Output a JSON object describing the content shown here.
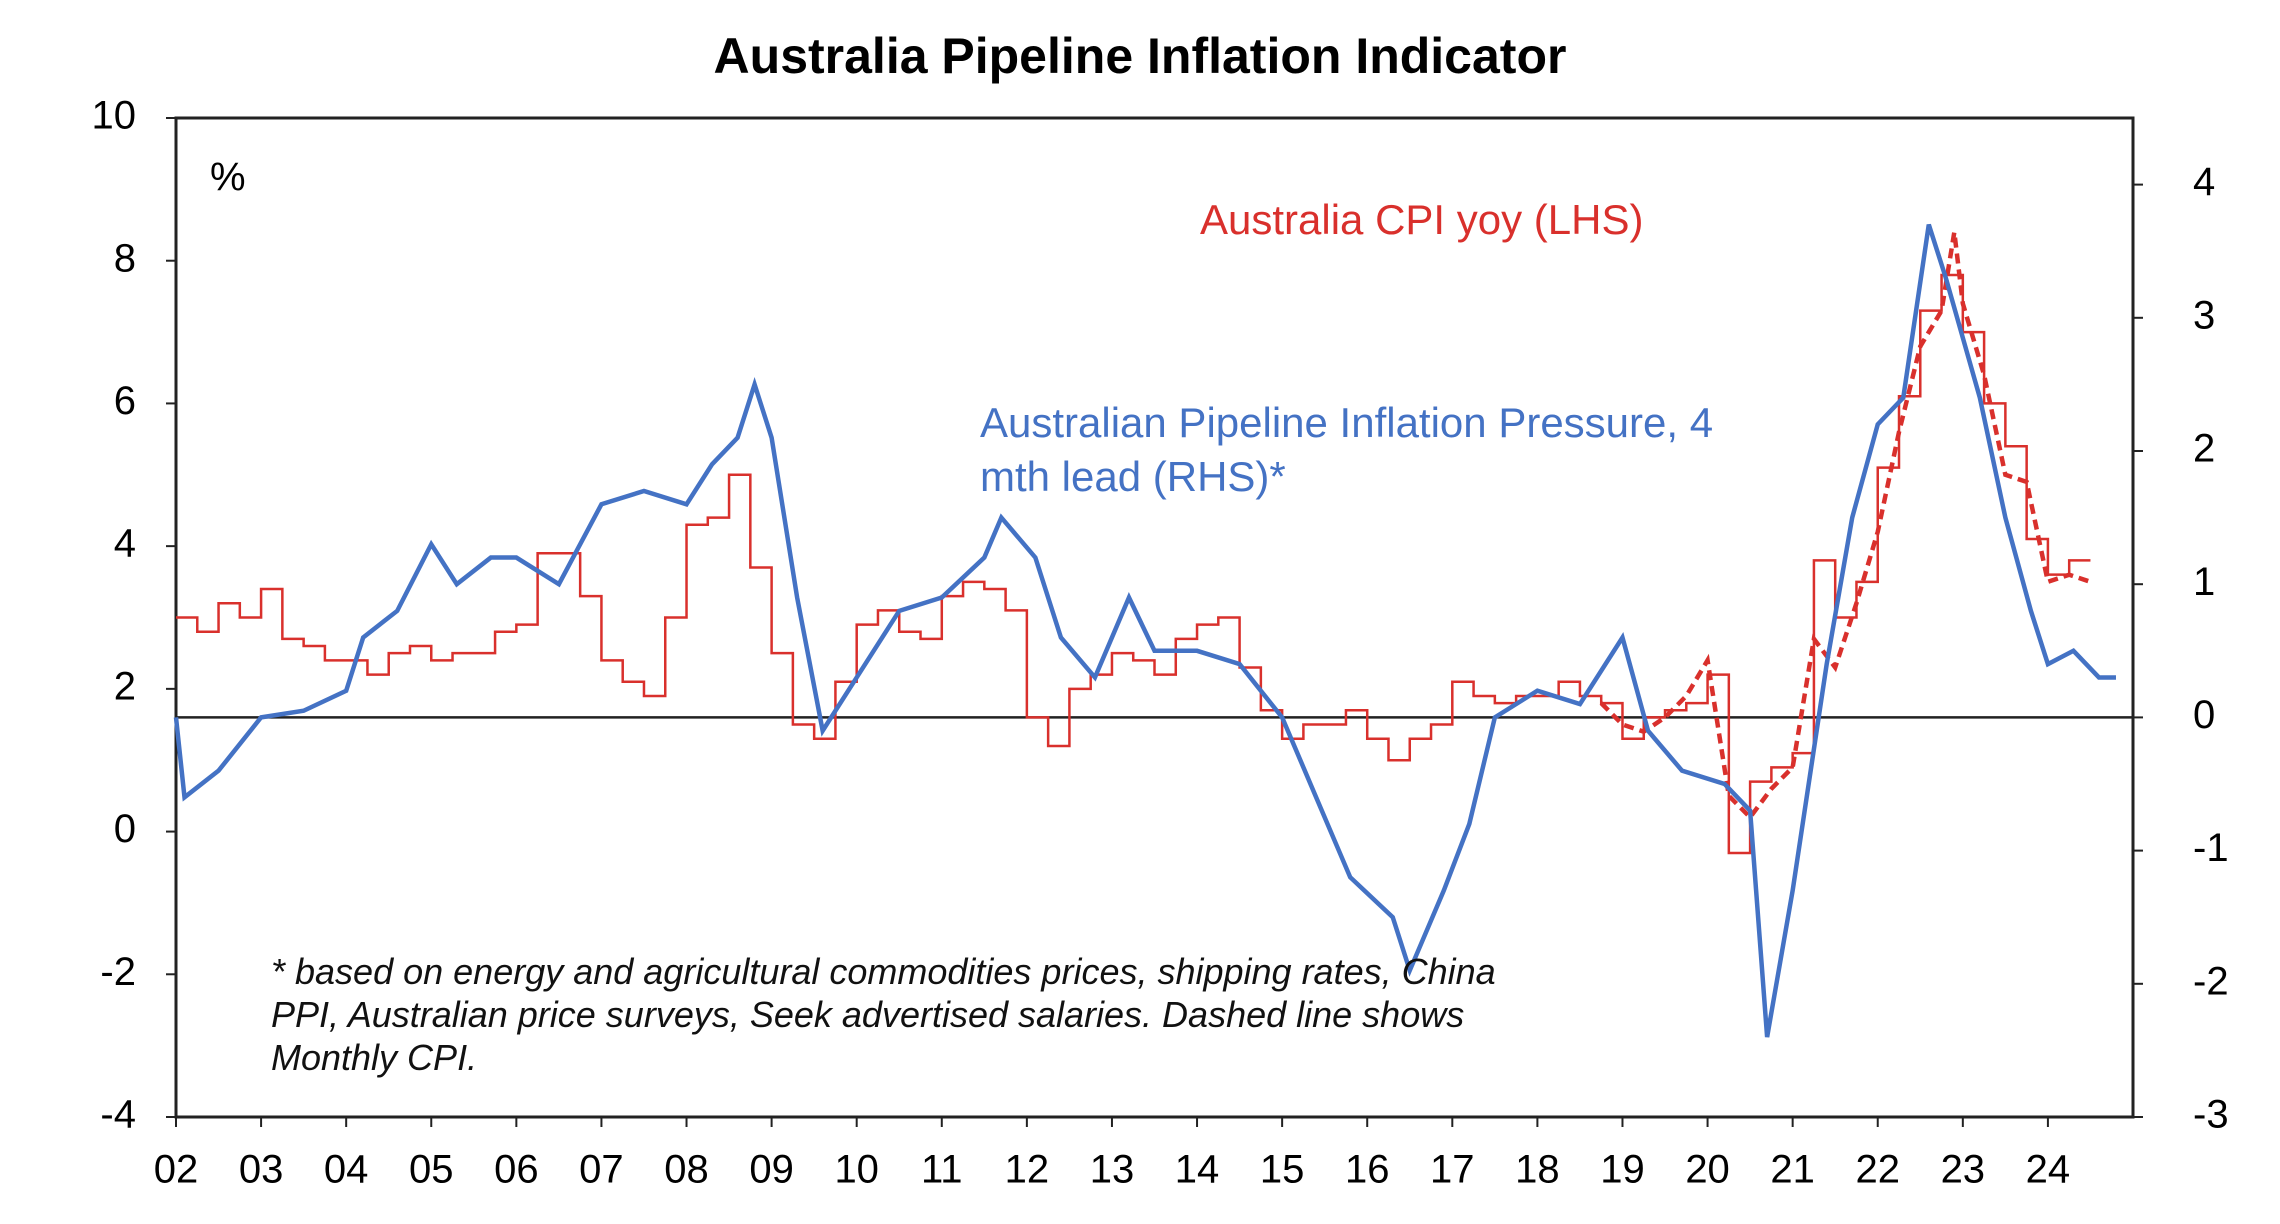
{
  "chart_data": {
    "type": "line",
    "title": "Australia Pipeline Inflation Indicator",
    "y_unit_label": "%",
    "xlim": [
      2002,
      2025
    ],
    "xticks": [
      {
        "value": 2002,
        "label": "02"
      },
      {
        "value": 2003,
        "label": "03"
      },
      {
        "value": 2004,
        "label": "04"
      },
      {
        "value": 2005,
        "label": "05"
      },
      {
        "value": 2006,
        "label": "06"
      },
      {
        "value": 2007,
        "label": "07"
      },
      {
        "value": 2008,
        "label": "08"
      },
      {
        "value": 2009,
        "label": "09"
      },
      {
        "value": 2010,
        "label": "10"
      },
      {
        "value": 2011,
        "label": "11"
      },
      {
        "value": 2012,
        "label": "12"
      },
      {
        "value": 2013,
        "label": "13"
      },
      {
        "value": 2014,
        "label": "14"
      },
      {
        "value": 2015,
        "label": "15"
      },
      {
        "value": 2016,
        "label": "16"
      },
      {
        "value": 2017,
        "label": "17"
      },
      {
        "value": 2018,
        "label": "18"
      },
      {
        "value": 2019,
        "label": "19"
      },
      {
        "value": 2020,
        "label": "20"
      },
      {
        "value": 2021,
        "label": "21"
      },
      {
        "value": 2022,
        "label": "22"
      },
      {
        "value": 2023,
        "label": "23"
      },
      {
        "value": 2024,
        "label": "24"
      }
    ],
    "ylim": [
      -4,
      10
    ],
    "yticks": [
      -4,
      -2,
      0,
      2,
      4,
      6,
      8,
      10
    ],
    "y2lim": [
      -3,
      4.5
    ],
    "y2ticks": [
      -3,
      -2,
      -1,
      0,
      1,
      2,
      3,
      4
    ],
    "hline": {
      "value": 0,
      "axis": "y2"
    },
    "footnote": "* based on energy and agricultural commodities prices, shipping rates, China PPI, Australian price surveys, Seek advertised salaries. Dashed line shows Monthly CPI.",
    "series": [
      {
        "name": "Australia CPI yoy (LHS)",
        "color": "#d9302c",
        "step": true,
        "axis": "y",
        "x": [
          2002,
          2002.25,
          2002.5,
          2002.75,
          2003,
          2003.25,
          2003.5,
          2003.75,
          2004,
          2004.25,
          2004.5,
          2004.75,
          2005,
          2005.25,
          2005.5,
          2005.75,
          2006,
          2006.25,
          2006.5,
          2006.75,
          2007,
          2007.25,
          2007.5,
          2007.75,
          2008,
          2008.25,
          2008.5,
          2008.75,
          2009,
          2009.25,
          2009.5,
          2009.75,
          2010,
          2010.25,
          2010.5,
          2010.75,
          2011,
          2011.25,
          2011.5,
          2011.75,
          2012,
          2012.25,
          2012.5,
          2012.75,
          2013,
          2013.25,
          2013.5,
          2013.75,
          2014,
          2014.25,
          2014.5,
          2014.75,
          2015,
          2015.25,
          2015.5,
          2015.75,
          2016,
          2016.25,
          2016.5,
          2016.75,
          2017,
          2017.25,
          2017.5,
          2017.75,
          2018,
          2018.25,
          2018.5,
          2018.75,
          2019,
          2019.25,
          2019.5,
          2019.75,
          2020,
          2020.25,
          2020.5,
          2020.75,
          2021,
          2021.25,
          2021.5,
          2021.75,
          2022,
          2022.25,
          2022.5,
          2022.75,
          2023,
          2023.25,
          2023.5,
          2023.75,
          2024,
          2024.25,
          2024.5
        ],
        "values": [
          3.0,
          2.8,
          3.2,
          3.0,
          3.4,
          2.7,
          2.6,
          2.4,
          2.4,
          2.2,
          2.5,
          2.6,
          2.4,
          2.5,
          2.5,
          2.8,
          2.9,
          3.9,
          3.9,
          3.3,
          2.4,
          2.1,
          1.9,
          3.0,
          4.3,
          4.4,
          5.0,
          3.7,
          2.5,
          1.5,
          1.3,
          2.1,
          2.9,
          3.1,
          2.8,
          2.7,
          3.3,
          3.5,
          3.4,
          3.1,
          1.6,
          1.2,
          2.0,
          2.2,
          2.5,
          2.4,
          2.2,
          2.7,
          2.9,
          3.0,
          2.3,
          1.7,
          1.3,
          1.5,
          1.5,
          1.7,
          1.3,
          1.0,
          1.3,
          1.5,
          2.1,
          1.9,
          1.8,
          1.9,
          1.9,
          2.1,
          1.9,
          1.8,
          1.3,
          1.6,
          1.7,
          1.8,
          2.2,
          -0.3,
          0.7,
          0.9,
          1.1,
          3.8,
          3.0,
          3.5,
          5.1,
          6.1,
          7.3,
          7.8,
          7.0,
          6.0,
          5.4,
          4.1,
          3.6,
          3.8,
          3.8
        ]
      },
      {
        "color": "#d9302c",
        "dash": true,
        "axis": "y",
        "x": [
          2018.75,
          2019,
          2019.25,
          2019.5,
          2019.75,
          2020,
          2020.25,
          2020.5,
          2020.75,
          2021,
          2021.25,
          2021.5,
          2021.75,
          2022,
          2022.25,
          2022.5,
          2022.75,
          2022.9,
          2023,
          2023.25,
          2023.5,
          2023.75,
          2024,
          2024.25,
          2024.5
        ],
        "values": [
          1.8,
          1.5,
          1.4,
          1.6,
          1.9,
          2.4,
          0.5,
          0.2,
          0.6,
          0.9,
          2.7,
          2.3,
          3.2,
          4.2,
          5.6,
          6.8,
          7.3,
          8.4,
          7.4,
          6.4,
          5.0,
          4.9,
          3.5,
          3.6,
          3.5
        ]
      },
      {
        "name": "Australian Pipeline Inflation Pressure, 4 mth lead (RHS)*",
        "color": "#4472c4",
        "axis": "y2",
        "x": [
          2002,
          2002.1,
          2002.5,
          2003,
          2003.5,
          2004,
          2004.2,
          2004.6,
          2005,
          2005.3,
          2005.7,
          2006,
          2006.5,
          2007,
          2007.5,
          2008,
          2008.3,
          2008.6,
          2008.8,
          2009,
          2009.3,
          2009.6,
          2010,
          2010.5,
          2011,
          2011.5,
          2011.7,
          2012.1,
          2012.4,
          2012.8,
          2013.2,
          2013.5,
          2014,
          2014.5,
          2015,
          2015.4,
          2015.8,
          2016.3,
          2016.5,
          2016.9,
          2017.2,
          2017.5,
          2018,
          2018.5,
          2019,
          2019.3,
          2019.7,
          2020.2,
          2020.5,
          2020.7,
          2021,
          2021.4,
          2021.7,
          2022,
          2022.3,
          2022.6,
          2022.8,
          2023.2,
          2023.5,
          2023.8,
          2024,
          2024.3,
          2024.6,
          2024.8
        ],
        "values": [
          0.0,
          -0.6,
          -0.4,
          0.0,
          0.05,
          0.2,
          0.6,
          0.8,
          1.3,
          1.0,
          1.2,
          1.2,
          1.0,
          1.6,
          1.7,
          1.6,
          1.9,
          2.1,
          2.5,
          2.1,
          0.9,
          -0.1,
          0.3,
          0.8,
          0.9,
          1.2,
          1.5,
          1.2,
          0.6,
          0.3,
          0.9,
          0.5,
          0.5,
          0.4,
          0.0,
          -0.6,
          -1.2,
          -1.5,
          -1.9,
          -1.3,
          -0.8,
          0.0,
          0.2,
          0.1,
          0.6,
          -0.1,
          -0.4,
          -0.5,
          -0.7,
          -2.4,
          -1.3,
          0.4,
          1.5,
          2.2,
          2.4,
          3.7,
          3.3,
          2.4,
          1.5,
          0.8,
          0.4,
          0.5,
          0.3,
          0.3
        ]
      }
    ]
  }
}
